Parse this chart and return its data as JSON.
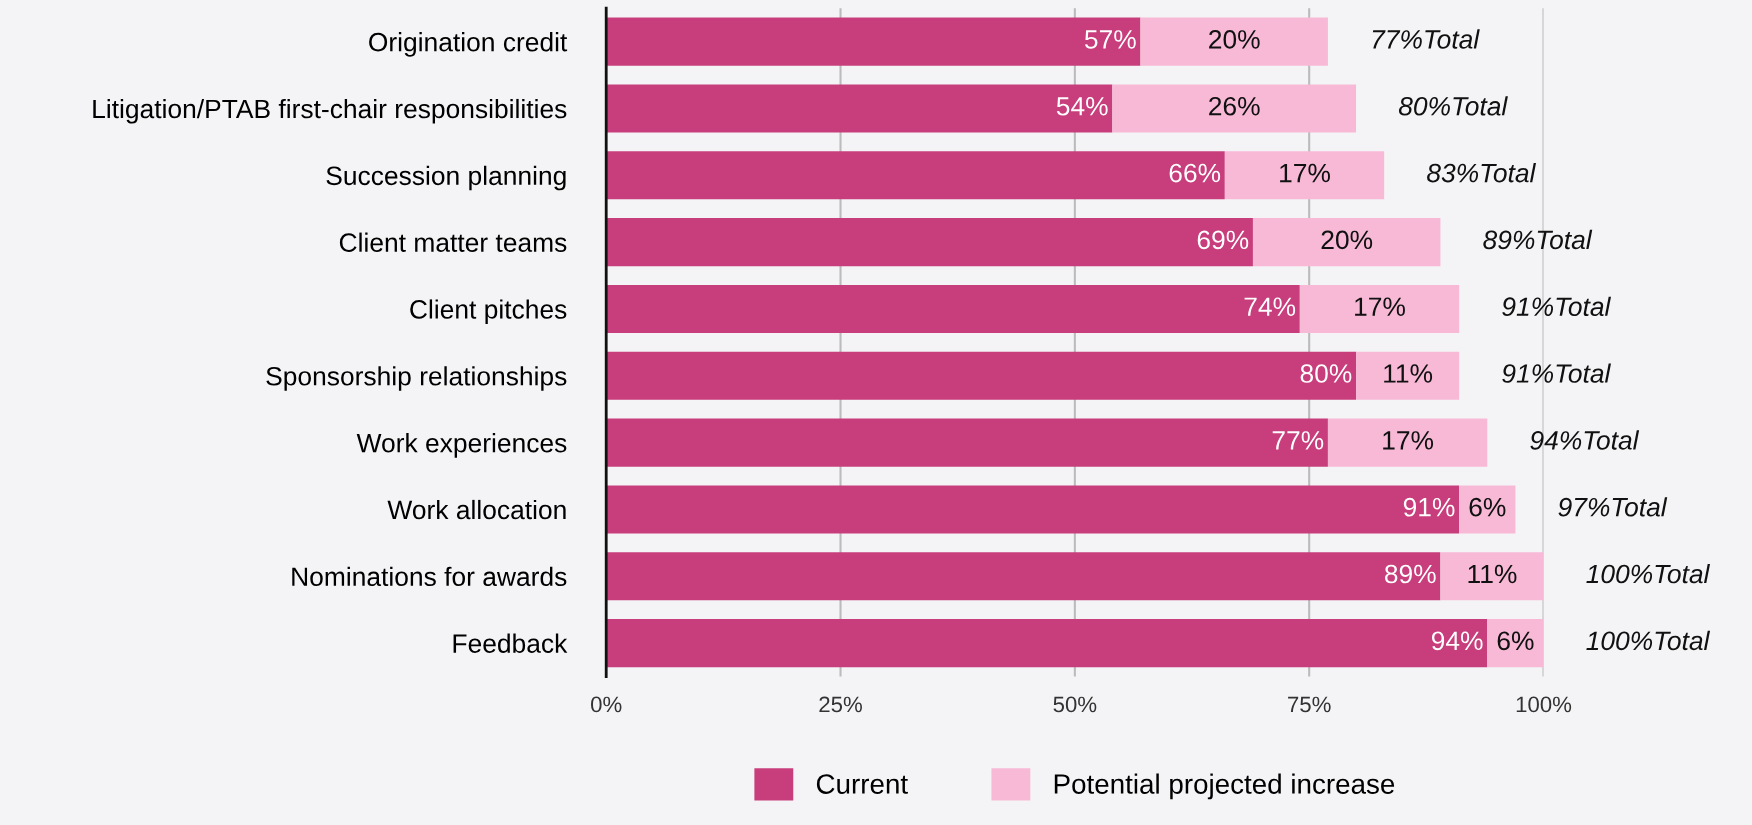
{
  "chart_data": {
    "type": "bar",
    "orientation": "horizontal",
    "stacked": true,
    "categories": [
      "Origination credit",
      "Litigation/PTAB first-chair responsibilities",
      "Succession planning",
      "Client matter teams",
      "Client pitches",
      "Sponsorship relationships",
      "Work experiences",
      "Work allocation",
      "Nominations for awards",
      "Feedback"
    ],
    "series": [
      {
        "name": "Current",
        "color": "#c83e7c",
        "values": [
          57,
          54,
          66,
          69,
          74,
          80,
          77,
          91,
          89,
          94
        ],
        "value_labels": [
          "57%",
          "54%",
          "66%",
          "69%",
          "74%",
          "80%",
          "77%",
          "91%",
          "89%",
          "94%"
        ]
      },
      {
        "name": "Potential projected increase",
        "color": "#f7b9d6",
        "values": [
          20,
          26,
          17,
          20,
          17,
          11,
          17,
          6,
          11,
          6
        ],
        "value_labels": [
          "20%",
          "26%",
          "17%",
          "20%",
          "17%",
          "11%",
          "17%",
          "6%",
          "11%",
          "6%"
        ]
      }
    ],
    "totals": [
      "77%Total",
      "80%Total",
      "83%Total",
      "89%Total",
      "91%Total",
      "91%Total",
      "94%Total",
      "97%Total",
      "100%Total",
      "100%Total"
    ],
    "xlim": [
      0,
      100
    ],
    "xticks": [
      {
        "value": 0,
        "label": "0%"
      },
      {
        "value": 25,
        "label": "25%"
      },
      {
        "value": 50,
        "label": "50%"
      },
      {
        "value": 75,
        "label": "75%"
      },
      {
        "value": 100,
        "label": "100%"
      }
    ],
    "grid": "x",
    "legend": "bottom"
  }
}
